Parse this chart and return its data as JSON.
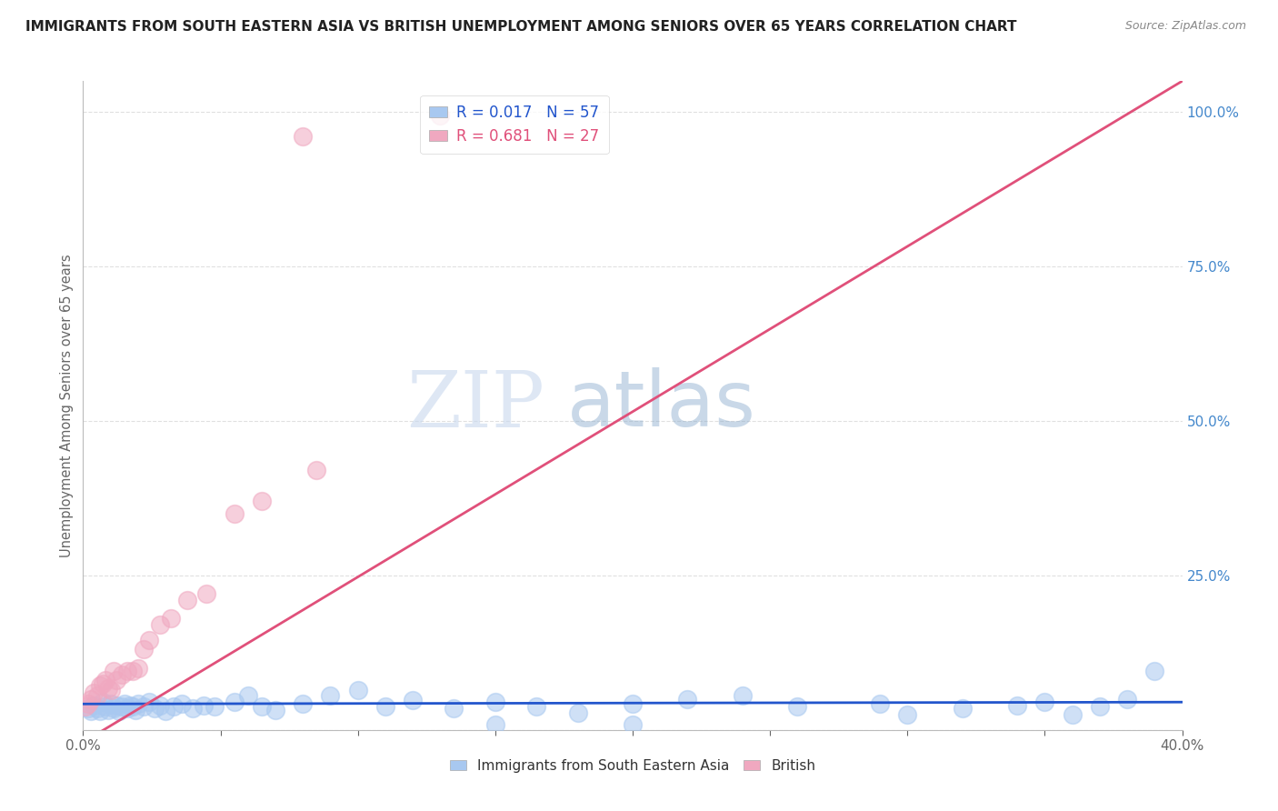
{
  "title": "IMMIGRANTS FROM SOUTH EASTERN ASIA VS BRITISH UNEMPLOYMENT AMONG SENIORS OVER 65 YEARS CORRELATION CHART",
  "source": "Source: ZipAtlas.com",
  "ylabel": "Unemployment Among Seniors over 65 years",
  "xlim": [
    0.0,
    0.4
  ],
  "ylim": [
    0.0,
    1.05
  ],
  "xticks": [
    0.0,
    0.05,
    0.1,
    0.15,
    0.2,
    0.25,
    0.3,
    0.35,
    0.4
  ],
  "yticks": [
    0.0,
    0.25,
    0.5,
    0.75,
    1.0
  ],
  "ytick_labels_right": [
    "",
    "25.0%",
    "50.0%",
    "75.0%",
    "100.0%"
  ],
  "blue_color": "#a8c8f0",
  "pink_color": "#f0a8c0",
  "blue_line_color": "#2255cc",
  "pink_line_color": "#e0507a",
  "blue_R": 0.017,
  "blue_N": 57,
  "pink_R": 0.681,
  "pink_N": 27,
  "legend_label_blue": "Immigrants from South Eastern Asia",
  "legend_label_pink": "British",
  "watermark_zip": "ZIP",
  "watermark_atlas": "atlas",
  "background_color": "#ffffff",
  "grid_color": "#dddddd",
  "title_color": "#222222",
  "right_axis_color": "#4488cc",
  "blue_x": [
    0.002,
    0.003,
    0.004,
    0.005,
    0.006,
    0.007,
    0.008,
    0.009,
    0.01,
    0.011,
    0.012,
    0.013,
    0.014,
    0.015,
    0.016,
    0.017,
    0.018,
    0.019,
    0.02,
    0.022,
    0.024,
    0.026,
    0.028,
    0.03,
    0.033,
    0.036,
    0.04,
    0.044,
    0.048,
    0.055,
    0.06,
    0.065,
    0.07,
    0.08,
    0.09,
    0.1,
    0.11,
    0.12,
    0.135,
    0.15,
    0.165,
    0.18,
    0.2,
    0.22,
    0.24,
    0.26,
    0.29,
    0.32,
    0.34,
    0.36,
    0.37,
    0.38,
    0.39,
    0.15,
    0.2,
    0.3,
    0.35
  ],
  "blue_y": [
    0.035,
    0.03,
    0.04,
    0.035,
    0.03,
    0.045,
    0.038,
    0.032,
    0.042,
    0.035,
    0.04,
    0.03,
    0.038,
    0.042,
    0.035,
    0.04,
    0.038,
    0.032,
    0.042,
    0.038,
    0.045,
    0.035,
    0.04,
    0.03,
    0.038,
    0.042,
    0.035,
    0.04,
    0.038,
    0.045,
    0.055,
    0.038,
    0.032,
    0.042,
    0.055,
    0.065,
    0.038,
    0.048,
    0.035,
    0.045,
    0.038,
    0.028,
    0.042,
    0.05,
    0.055,
    0.038,
    0.042,
    0.035,
    0.04,
    0.025,
    0.038,
    0.05,
    0.095,
    0.008,
    0.008,
    0.025,
    0.045
  ],
  "pink_x": [
    0.001,
    0.002,
    0.003,
    0.004,
    0.005,
    0.006,
    0.007,
    0.008,
    0.009,
    0.01,
    0.011,
    0.012,
    0.014,
    0.016,
    0.018,
    0.02,
    0.022,
    0.024,
    0.028,
    0.032,
    0.038,
    0.045,
    0.055,
    0.065,
    0.08,
    0.085,
    0.13
  ],
  "pink_y": [
    0.038,
    0.042,
    0.05,
    0.06,
    0.055,
    0.072,
    0.075,
    0.08,
    0.068,
    0.065,
    0.095,
    0.08,
    0.09,
    0.095,
    0.095,
    0.1,
    0.13,
    0.145,
    0.17,
    0.18,
    0.21,
    0.22,
    0.35,
    0.37,
    0.96,
    0.42,
    0.995
  ],
  "pink_line_x0": 0.0,
  "pink_line_y0": -0.02,
  "pink_line_x1": 0.4,
  "pink_line_y1": 1.05,
  "blue_line_x0": 0.0,
  "blue_line_y0": 0.042,
  "blue_line_x1": 0.4,
  "blue_line_y1": 0.045
}
